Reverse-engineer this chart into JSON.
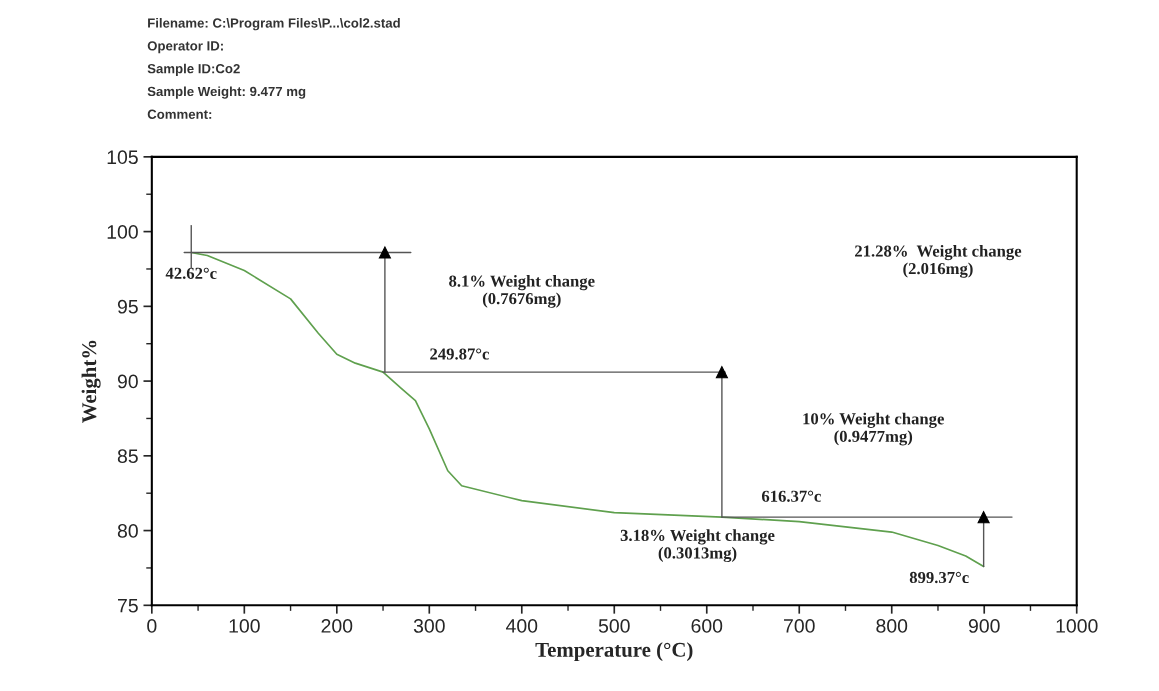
{
  "chart_data": {
    "type": "line",
    "xlabel": "Temperature (°C)",
    "ylabel": "Weight%",
    "xlim": [
      0,
      1000
    ],
    "xticks": [
      0,
      100,
      200,
      300,
      400,
      500,
      600,
      700,
      800,
      900,
      1000
    ],
    "ylim": [
      75,
      105
    ],
    "yticks": [
      75,
      80,
      85,
      90,
      95,
      100,
      105
    ],
    "grid": false,
    "legend": false,
    "marker": "none",
    "line_style": "solid",
    "series": [
      {
        "color": "#5fa04e",
        "x": [
          42.62,
          60,
          100,
          150,
          180,
          200,
          220,
          250,
          270,
          285,
          300,
          320,
          335,
          400,
          500,
          616.37,
          700,
          800,
          850,
          880,
          899.37
        ],
        "values": [
          98.6,
          98.4,
          97.4,
          95.5,
          93.2,
          91.8,
          91.2,
          90.6,
          89.5,
          88.7,
          86.8,
          84.0,
          83.0,
          82.0,
          81.2,
          80.9,
          80.6,
          79.9,
          79.0,
          78.3,
          77.6
        ]
      },
      {
        "color": "#555555",
        "x": [
          35,
          280
        ],
        "values": [
          98.6,
          98.6
        ]
      },
      {
        "color": "#555555",
        "x": [
          42.62,
          42.62
        ],
        "values": [
          97.6,
          100.4
        ]
      },
      {
        "color": "#555555",
        "x": [
          252,
          252
        ],
        "values": [
          90.6,
          98.6
        ],
        "marker": "triangle"
      },
      {
        "color": "#555555",
        "x": [
          250,
          620
        ],
        "values": [
          90.6,
          90.6
        ]
      },
      {
        "color": "#555555",
        "x": [
          616.37,
          616.37
        ],
        "values": [
          80.9,
          90.6
        ],
        "marker": "triangle"
      },
      {
        "color": "#555555",
        "x": [
          616.37,
          930
        ],
        "values": [
          80.9,
          80.9
        ]
      },
      {
        "color": "#555555",
        "x": [
          899.37,
          899.37
        ],
        "values": [
          77.6,
          80.9
        ],
        "marker": "triangle"
      }
    ],
    "annotations": [
      "Filename: C:\\Program Files\\P...\\col2.stad",
      "Operator ID:",
      "Sample ID:Co2",
      "Sample Weight: 9.477 mg",
      "Comment:",
      {
        "text": "42.62°c",
        "x": 42.62,
        "y": 98.6
      },
      "8.1% Weight change\n(0.7676mg)",
      {
        "text": "249.87°c",
        "x": 250,
        "y": 90.6
      },
      "21.28%  Weight change\n(2.016mg)",
      "10% Weight change\n(0.9477mg)",
      {
        "text": "616.37°c",
        "x": 616.37,
        "y": 80.9
      },
      "3.18% Weight change\n(0.3013mg)",
      {
        "text": "899.37°c",
        "x": 899.37,
        "y": 77.6
      }
    ]
  }
}
